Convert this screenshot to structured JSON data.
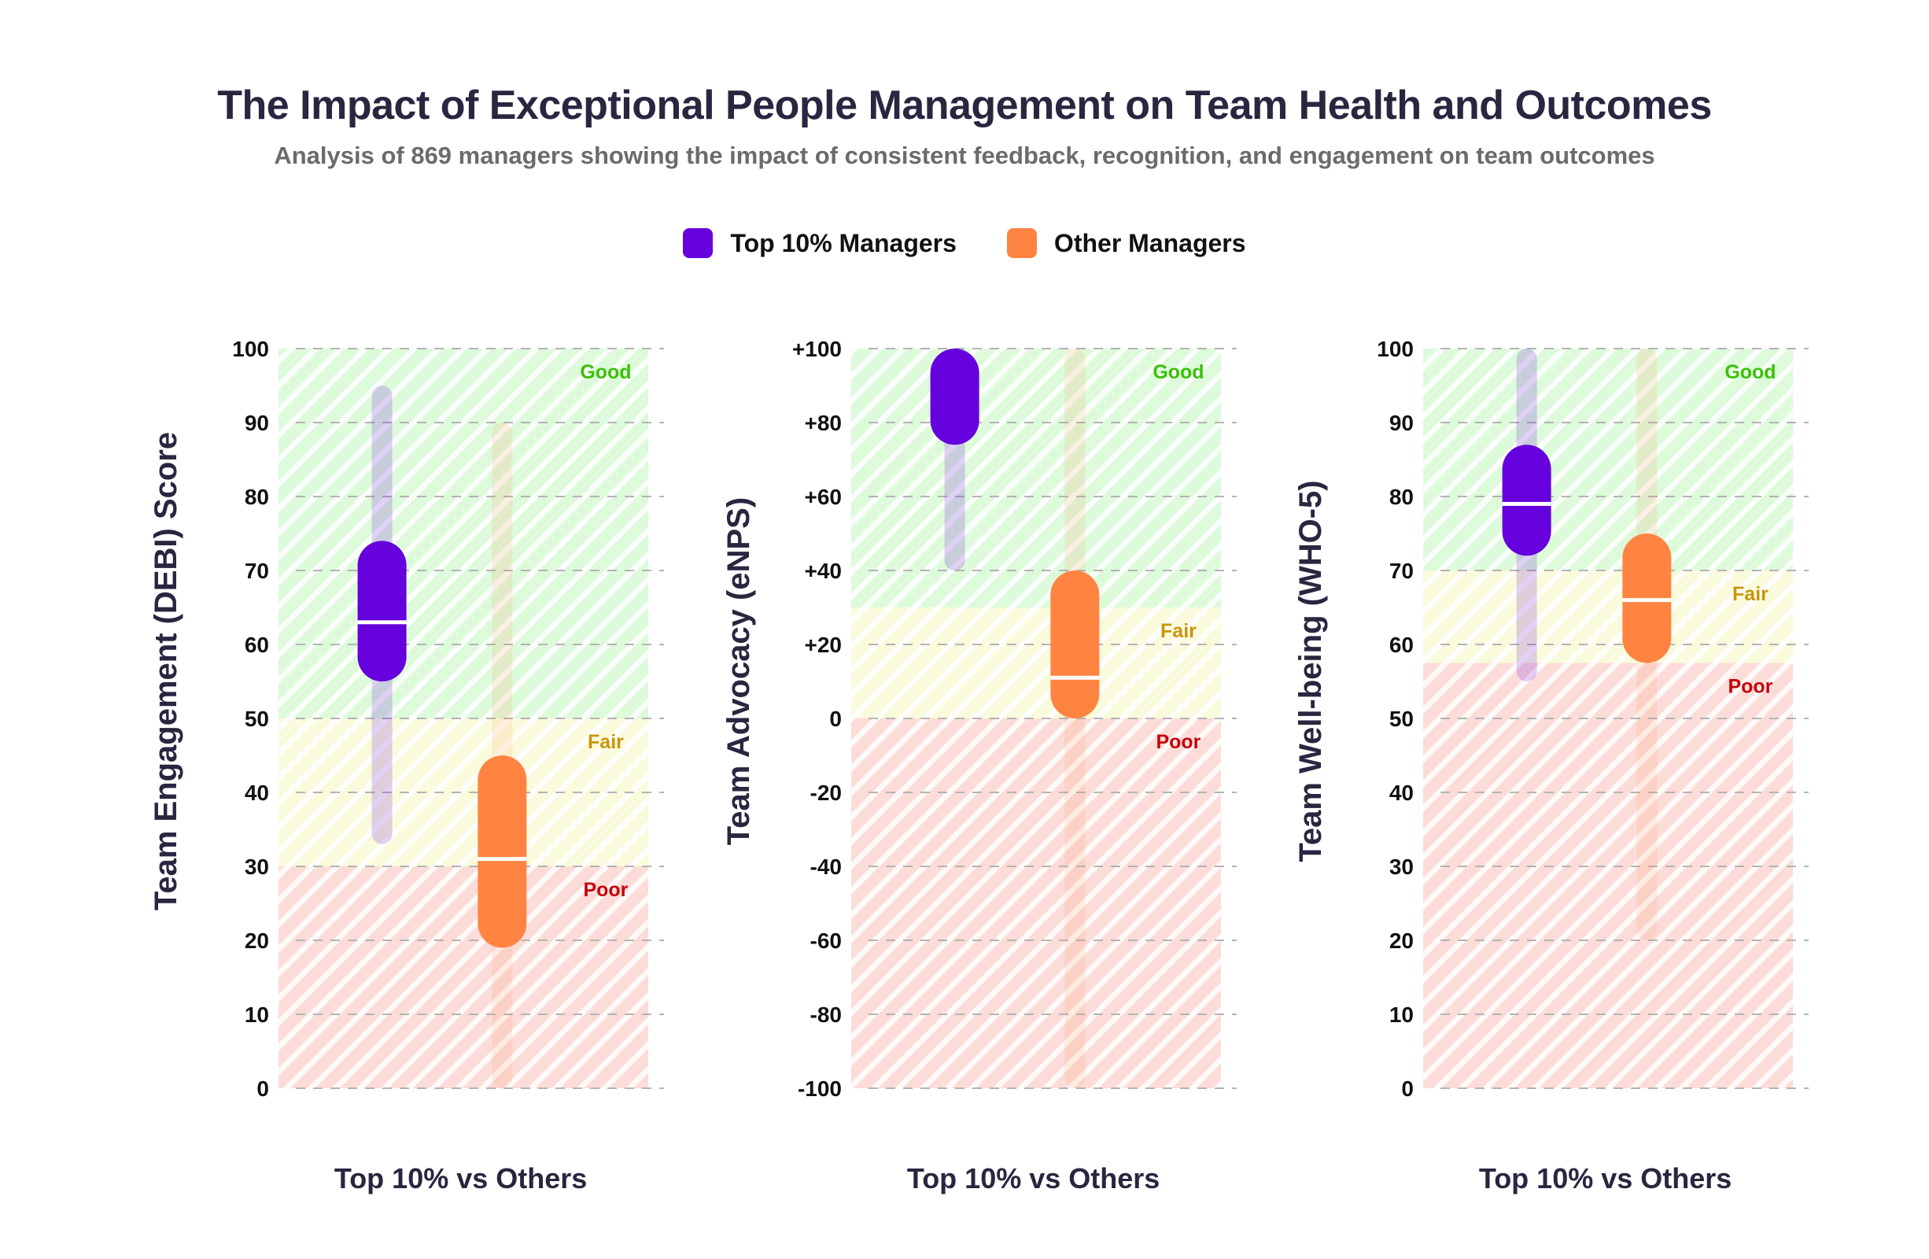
{
  "header": {
    "title": "The Impact of Exceptional People Management on Team Health and Outcomes",
    "subtitle": "Analysis of 869 managers showing the impact of consistent feedback, recognition, and engagement on team outcomes"
  },
  "legend": [
    {
      "label": "Top 10% Managers",
      "color": "#6600dd"
    },
    {
      "label": "Other Managers",
      "color": "#ff8442"
    }
  ],
  "colors": {
    "good_fill": "#ddfadb",
    "good_text": "#3cc00a",
    "fair_fill": "#fafadc",
    "fair_text": "#c8960a",
    "poor_fill": "#fcdcd8",
    "poor_text": "#c8000a",
    "grid": "#b4b4b4",
    "text_dark": "#2a2640"
  },
  "chart_data": [
    {
      "type": "boxplot",
      "ylabel": "Team Engagement (DEBI) Score",
      "xlabel": "Top 10% vs Others",
      "ylim": [
        0,
        100
      ],
      "yticks": [
        0,
        10,
        20,
        30,
        40,
        50,
        60,
        70,
        80,
        90,
        100
      ],
      "ytick_labels": [
        "0",
        "10",
        "20",
        "30",
        "40",
        "50",
        "60",
        "70",
        "80",
        "90",
        "100"
      ],
      "grid": true,
      "zones": [
        {
          "name": "Good",
          "from": 50,
          "to": 100
        },
        {
          "name": "Fair",
          "from": 30,
          "to": 50
        },
        {
          "name": "Poor",
          "from": 0,
          "to": 30
        }
      ],
      "series": [
        {
          "name": "Top 10% Managers",
          "whisker_low": 33,
          "q1": 55,
          "median": 63,
          "q3": 74,
          "whisker_high": 95
        },
        {
          "name": "Other Managers",
          "whisker_low": 0,
          "q1": 19,
          "median": 31,
          "q3": 45,
          "whisker_high": 90
        }
      ]
    },
    {
      "type": "boxplot",
      "ylabel": "Team Advocacy (eNPS)",
      "xlabel": "Top 10% vs Others",
      "ylim": [
        -100,
        100
      ],
      "yticks": [
        -100,
        -80,
        -60,
        -40,
        -20,
        0,
        20,
        40,
        60,
        80,
        100
      ],
      "ytick_labels": [
        "-100",
        "-80",
        "-60",
        "-40",
        "-20",
        "0",
        "+20",
        "+40",
        "+60",
        "+80",
        "+100"
      ],
      "grid": true,
      "zones": [
        {
          "name": "Good",
          "from": 30,
          "to": 100
        },
        {
          "name": "Fair",
          "from": 0,
          "to": 30
        },
        {
          "name": "Poor",
          "from": -100,
          "to": 0
        }
      ],
      "series": [
        {
          "name": "Top 10% Managers",
          "whisker_low": 40,
          "q1": 74,
          "median": null,
          "q3": 100,
          "whisker_high": 100
        },
        {
          "name": "Other Managers",
          "whisker_low": -100,
          "q1": 0,
          "median": 11,
          "q3": 40,
          "whisker_high": 100
        }
      ]
    },
    {
      "type": "boxplot",
      "ylabel": "Team Well-being (WHO-5)",
      "xlabel": "Top 10% vs Others",
      "ylim": [
        0,
        100
      ],
      "yticks": [
        0,
        10,
        20,
        30,
        40,
        50,
        60,
        70,
        80,
        90,
        100
      ],
      "ytick_labels": [
        "0",
        "10",
        "20",
        "30",
        "40",
        "50",
        "60",
        "70",
        "80",
        "90",
        "100"
      ],
      "grid": true,
      "zones": [
        {
          "name": "Good",
          "from": 70,
          "to": 100
        },
        {
          "name": "Fair",
          "from": 57.5,
          "to": 70
        },
        {
          "name": "Poor",
          "from": 0,
          "to": 57.5
        }
      ],
      "series": [
        {
          "name": "Top 10% Managers",
          "whisker_low": 55,
          "q1": 72,
          "median": 79,
          "q3": 87,
          "whisker_high": 100
        },
        {
          "name": "Other Managers",
          "whisker_low": 20,
          "q1": 57.5,
          "median": 66,
          "q3": 75,
          "whisker_high": 100
        }
      ]
    }
  ]
}
